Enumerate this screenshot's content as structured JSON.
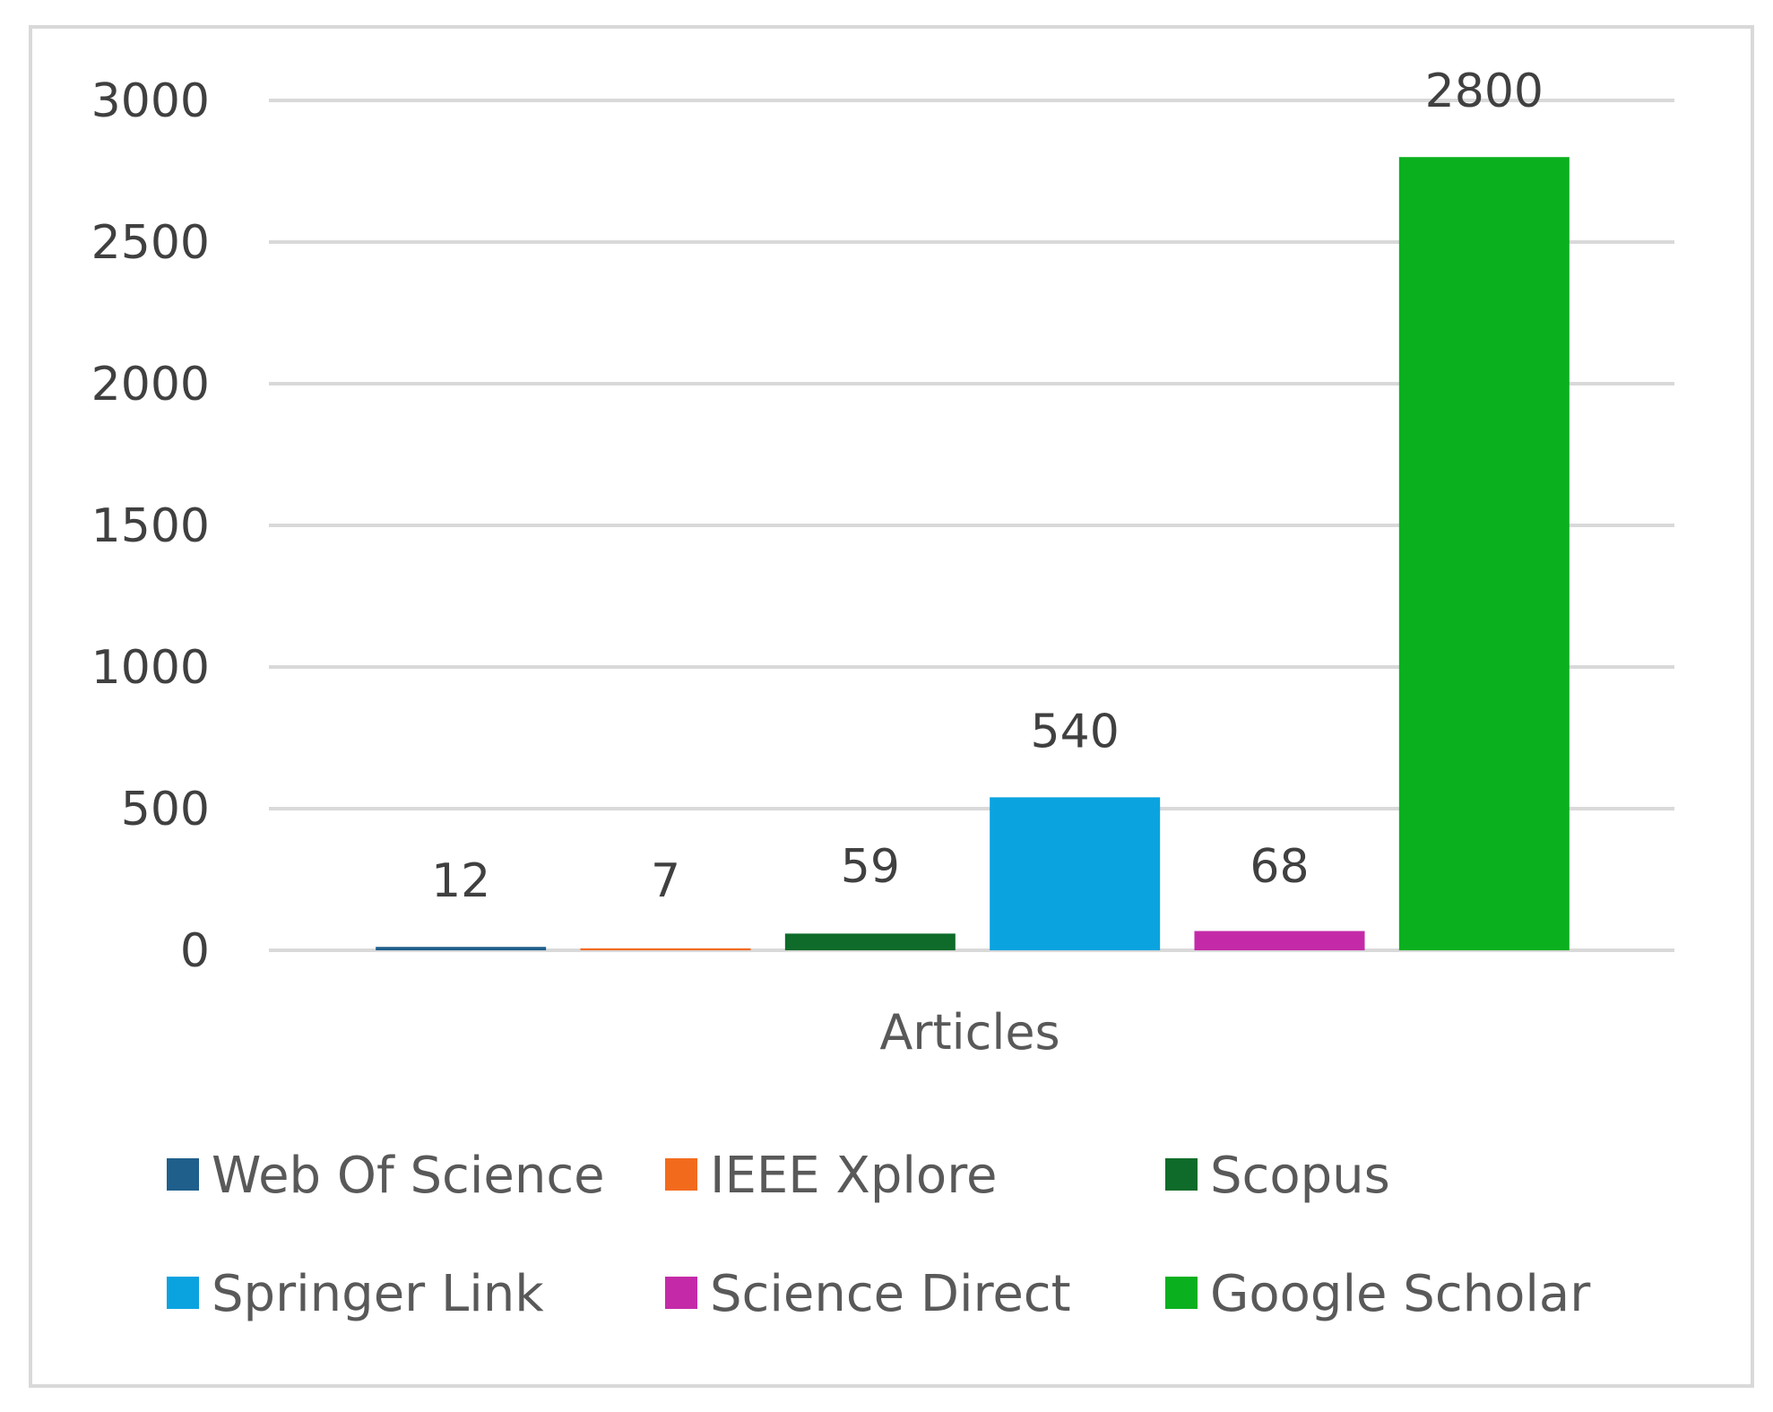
{
  "chart_data": {
    "type": "bar",
    "categories": [
      "Articles"
    ],
    "xlabel": "Articles",
    "ylabel": "",
    "title": "",
    "ylim": [
      0,
      3000
    ],
    "yticks": [
      0,
      500,
      1000,
      1500,
      2000,
      2500,
      3000
    ],
    "grid": true,
    "legend_position": "bottom",
    "series": [
      {
        "name": "Web Of Science",
        "values": [
          12
        ],
        "color": "#1f5f8b"
      },
      {
        "name": "IEEE Xplore",
        "values": [
          7
        ],
        "color": "#f26b1d"
      },
      {
        "name": "Scopus",
        "values": [
          59
        ],
        "color": "#0e6b2a"
      },
      {
        "name": "Springer Link",
        "values": [
          540
        ],
        "color": "#0aa3e0"
      },
      {
        "name": "Science Direct",
        "values": [
          68
        ],
        "color": "#c42aa8"
      },
      {
        "name": "Google Scholar",
        "values": [
          2800
        ],
        "color": "#0bb01f"
      }
    ]
  }
}
